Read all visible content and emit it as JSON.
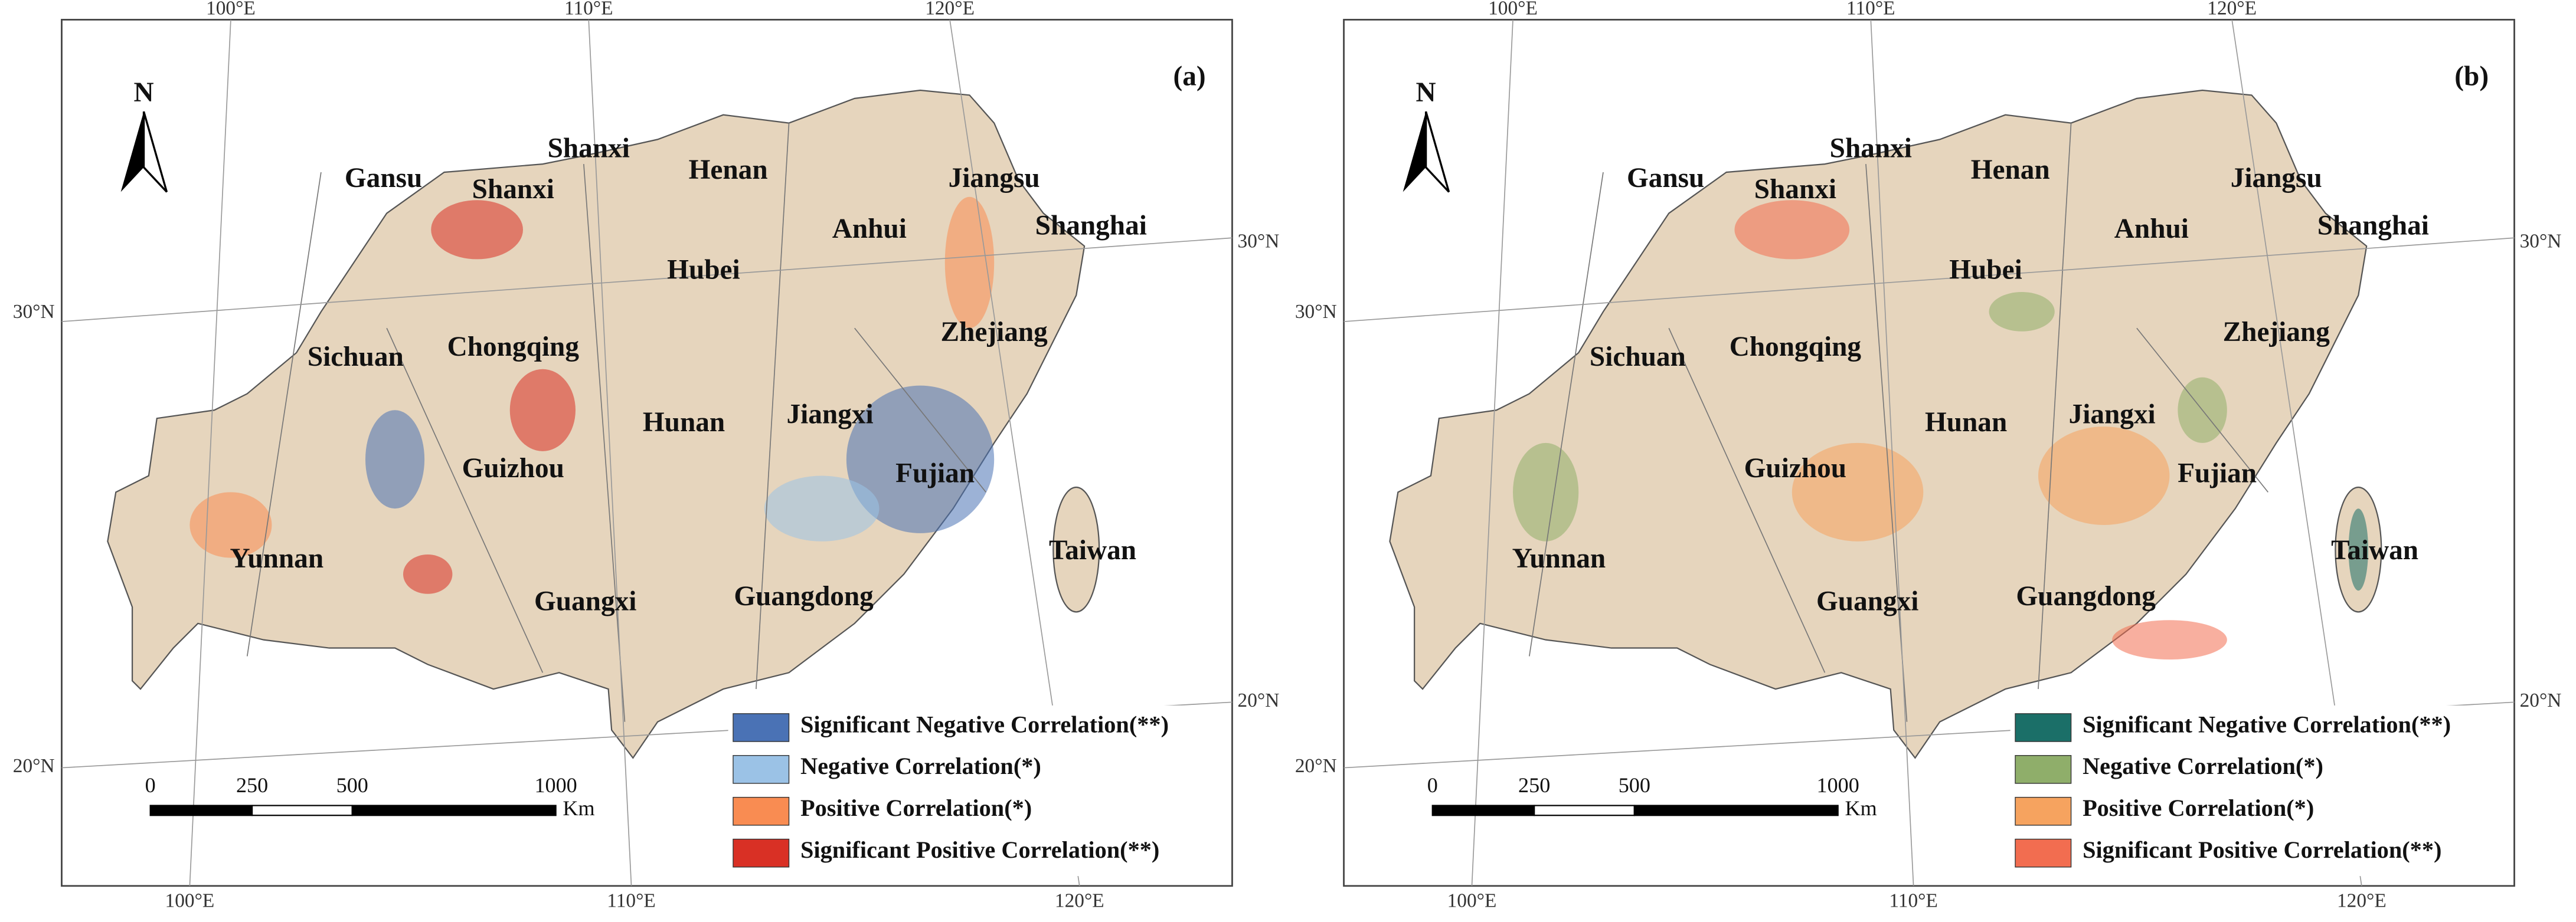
{
  "panels": [
    {
      "label": "(a)",
      "north": "N",
      "provinces": [
        "Gansu",
        "Shanxi",
        "Shanxi",
        "Henan",
        "Jiangsu",
        "Anhui",
        "Shanghai",
        "Hubei",
        "Zhejiang",
        "Sichuan",
        "Chongqing",
        "Hunan",
        "Jiangxi",
        "Fujian",
        "Guizhou",
        "Yunnan",
        "Taiwan",
        "Guangxi",
        "Guangdong"
      ],
      "legend": [
        {
          "text": "Significant Negative Correlation(**)",
          "color": "#4a72b5"
        },
        {
          "text": "Negative Correlation(*)",
          "color": "#9bc2e6"
        },
        {
          "text": "Positive Correlation(*)",
          "color": "#f98c52"
        },
        {
          "text": "Significant Positive Correlation(**)",
          "color": "#d93025"
        }
      ],
      "scale_labels": [
        "0",
        "250",
        "500",
        "1000"
      ],
      "scale_unit": "Km",
      "top_labels": [
        "100°E",
        "110°E",
        "120°E"
      ],
      "bottom_labels": [
        "100°E",
        "110°E",
        "120°E"
      ],
      "left_labels": [
        "30°N",
        "20°N"
      ],
      "right_labels": [
        "30°N",
        "20°N"
      ]
    },
    {
      "label": "(b)",
      "north": "N",
      "provinces": [
        "Gansu",
        "Shanxi",
        "Shanxi",
        "Henan",
        "Jiangsu",
        "Anhui",
        "Shanghai",
        "Hubei",
        "Zhejiang",
        "Sichuan",
        "Chongqing",
        "Hunan",
        "Jiangxi",
        "Fujian",
        "Guizhou",
        "Yunnan",
        "Taiwan",
        "Guangxi",
        "Guangdong"
      ],
      "legend": [
        {
          "text": "Significant Negative Correlation(**)",
          "color": "#1b6f68"
        },
        {
          "text": "Negative Correlation(*)",
          "color": "#8fae6a"
        },
        {
          "text": "Positive Correlation(*)",
          "color": "#f6a35f"
        },
        {
          "text": "Significant Positive Correlation(**)",
          "color": "#f26d50"
        }
      ],
      "scale_labels": [
        "0",
        "250",
        "500",
        "1000"
      ],
      "scale_unit": "Km",
      "top_labels": [
        "100°E",
        "110°E",
        "120°E"
      ],
      "bottom_labels": [
        "100°E",
        "110°E",
        "120°E"
      ],
      "left_labels": [
        "30°N",
        "20°N"
      ],
      "right_labels": [
        "30°N",
        "20°N"
      ]
    }
  ]
}
